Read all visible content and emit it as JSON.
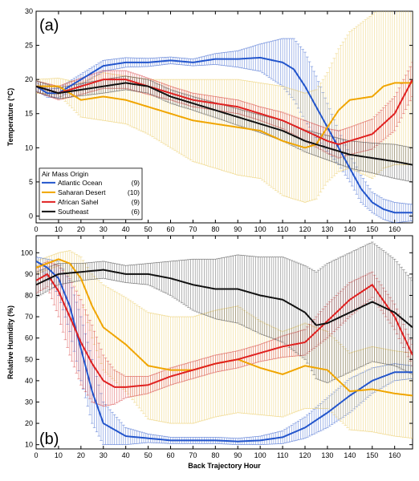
{
  "chart_data": [
    {
      "type": "line",
      "panel_label": "(a)",
      "xlabel": "",
      "ylabel": "Temperature (°C)",
      "xlim": [
        0,
        168
      ],
      "ylim": [
        -1,
        30
      ],
      "xticks": [
        0,
        10,
        20,
        30,
        40,
        50,
        60,
        70,
        80,
        90,
        100,
        110,
        120,
        130,
        140,
        150,
        160
      ],
      "yticks": [
        0,
        5,
        10,
        15,
        20,
        25,
        30
      ],
      "grid": false,
      "legend": {
        "title": "Air Mass Origin",
        "placement": "lower-left",
        "entries": [
          {
            "name": "Atlantic Ocean",
            "count": "(9)"
          },
          {
            "name": "Saharan Desert",
            "count": "(10)"
          },
          {
            "name": "African Sahel",
            "count": "(9)"
          },
          {
            "name": "Southeast",
            "count": "(6)"
          }
        ]
      },
      "series": [
        {
          "name": "Atlantic Ocean",
          "color": "#2255cc",
          "band_color": "#1f4fc8",
          "x": [
            0,
            5,
            10,
            20,
            30,
            40,
            50,
            60,
            70,
            80,
            90,
            100,
            110,
            115,
            120,
            125,
            130,
            135,
            140,
            145,
            150,
            155,
            160,
            168
          ],
          "y": [
            19,
            18,
            18,
            20,
            22,
            22.5,
            22.5,
            22.8,
            22.5,
            23,
            23,
            23.2,
            22.5,
            21.5,
            19,
            16,
            13,
            10,
            7,
            4,
            2,
            1,
            0.5,
            0.5
          ],
          "err": [
            0.6,
            0.6,
            0.7,
            0.8,
            0.8,
            0.7,
            0.6,
            0.5,
            0.5,
            0.8,
            1.2,
            2.0,
            3.5,
            4.5,
            5.0,
            4.5,
            3.5,
            2.5,
            2.0,
            2.0,
            1.5,
            1.5,
            1.5,
            1.2
          ]
        },
        {
          "name": "Saharan Desert",
          "color": "#f0a500",
          "band_color": "#e8c24a",
          "x": [
            0,
            10,
            20,
            30,
            40,
            50,
            60,
            70,
            80,
            90,
            100,
            110,
            120,
            125,
            130,
            135,
            140,
            150,
            155,
            160,
            168
          ],
          "y": [
            19,
            19,
            17,
            17.5,
            17,
            16,
            15,
            14,
            13.5,
            13,
            12.5,
            11,
            10,
            10.5,
            13,
            15.5,
            17,
            17.5,
            19,
            19.5,
            19.5
          ],
          "err": [
            1.0,
            1.2,
            2.5,
            3.5,
            3.5,
            4.0,
            5.0,
            6.0,
            6.5,
            7.0,
            7.0,
            8.0,
            8.0,
            8.0,
            8.0,
            9.0,
            10.0,
            12.0,
            12.0,
            12.0,
            12.0
          ]
        },
        {
          "name": "African Sahel",
          "color": "#e02020",
          "band_color": "#d22020",
          "x": [
            0,
            10,
            20,
            30,
            40,
            50,
            60,
            70,
            80,
            90,
            100,
            110,
            120,
            130,
            135,
            140,
            150,
            160,
            168
          ],
          "y": [
            19,
            18,
            19,
            20,
            20,
            19,
            18,
            17,
            16.5,
            16,
            15,
            14,
            12.5,
            11,
            10.5,
            11,
            12,
            15,
            20
          ],
          "err": [
            0.8,
            1.0,
            1.2,
            1.3,
            1.3,
            1.2,
            1.0,
            1.0,
            1.0,
            1.0,
            1.0,
            1.2,
            1.5,
            1.8,
            2.0,
            2.0,
            2.2,
            2.5,
            2.5
          ]
        },
        {
          "name": "Southeast",
          "color": "#111111",
          "band_color": "#333333",
          "x": [
            0,
            10,
            20,
            30,
            40,
            50,
            60,
            70,
            80,
            90,
            100,
            110,
            120,
            130,
            140,
            150,
            160,
            168
          ],
          "y": [
            19,
            18,
            18.5,
            19,
            19.5,
            19,
            17.5,
            16.5,
            15.5,
            14.5,
            13.5,
            12.5,
            11,
            10,
            9,
            8.5,
            8,
            7.5
          ],
          "err": [
            0.8,
            0.8,
            0.9,
            1.0,
            1.0,
            1.0,
            1.0,
            1.0,
            1.1,
            1.2,
            1.3,
            1.5,
            1.6,
            1.8,
            2.0,
            2.2,
            2.5,
            2.5
          ]
        }
      ]
    },
    {
      "type": "line",
      "panel_label": "(b)",
      "xlabel": "Back Trajectory Hour",
      "ylabel": "Relative Humidity (%)",
      "xlim": [
        0,
        168
      ],
      "ylim": [
        8,
        108
      ],
      "xticks": [
        0,
        10,
        20,
        30,
        40,
        50,
        60,
        70,
        80,
        90,
        100,
        110,
        120,
        130,
        140,
        150,
        160
      ],
      "yticks": [
        10,
        20,
        30,
        40,
        50,
        60,
        70,
        80,
        90,
        100
      ],
      "grid": false,
      "series": [
        {
          "name": "Atlantic Ocean",
          "color": "#2255cc",
          "band_color": "#1f4fc8",
          "x": [
            0,
            5,
            10,
            15,
            20,
            25,
            30,
            40,
            50,
            60,
            70,
            80,
            90,
            100,
            110,
            120,
            130,
            140,
            150,
            160,
            168
          ],
          "y": [
            96,
            93,
            88,
            75,
            55,
            35,
            20,
            14,
            13,
            12,
            12,
            12,
            11.5,
            12,
            13.5,
            18,
            25,
            33,
            40,
            44,
            44
          ],
          "err": [
            2,
            4,
            8,
            12,
            15,
            15,
            10,
            4,
            2,
            1.5,
            1.5,
            1.5,
            1.5,
            2,
            3,
            5,
            7,
            8,
            6,
            4,
            3
          ]
        },
        {
          "name": "Saharan Desert",
          "color": "#f0a500",
          "band_color": "#e8c24a",
          "x": [
            0,
            5,
            10,
            15,
            20,
            25,
            30,
            40,
            50,
            60,
            70,
            80,
            90,
            100,
            110,
            120,
            130,
            140,
            150,
            160,
            168
          ],
          "y": [
            93,
            95,
            97,
            95,
            88,
            75,
            65,
            57,
            47,
            45,
            45,
            48,
            50,
            46,
            43,
            47,
            45,
            35,
            36,
            34,
            33
          ],
          "err": [
            3,
            3,
            3,
            6,
            10,
            15,
            20,
            22,
            25,
            25,
            25,
            25,
            25,
            22,
            20,
            20,
            18,
            18,
            20,
            20,
            20
          ]
        },
        {
          "name": "African Sahel",
          "color": "#e02020",
          "band_color": "#d22020",
          "x": [
            0,
            5,
            10,
            15,
            20,
            25,
            30,
            35,
            40,
            50,
            60,
            70,
            80,
            90,
            100,
            110,
            120,
            130,
            140,
            150,
            160,
            168
          ],
          "y": [
            87,
            90,
            82,
            70,
            58,
            48,
            40,
            37,
            37,
            38,
            42,
            45,
            48,
            50,
            53,
            56,
            58,
            68,
            78,
            85,
            70,
            52
          ],
          "err": [
            6,
            6,
            12,
            18,
            20,
            18,
            12,
            8,
            5,
            4,
            4,
            4,
            4,
            4,
            4,
            5,
            6,
            8,
            8,
            6,
            6,
            5
          ]
        },
        {
          "name": "Southeast",
          "color": "#111111",
          "band_color": "#333333",
          "x": [
            0,
            10,
            20,
            30,
            40,
            50,
            60,
            70,
            80,
            90,
            100,
            110,
            120,
            125,
            130,
            140,
            150,
            160,
            168
          ],
          "y": [
            85,
            90,
            91,
            92,
            90,
            90,
            88,
            85,
            83,
            83,
            80,
            78,
            72,
            66,
            67,
            72,
            77,
            72,
            65
          ],
          "err": [
            6,
            5,
            4,
            4,
            4,
            5,
            8,
            12,
            14,
            16,
            18,
            20,
            22,
            25,
            28,
            28,
            28,
            25,
            22
          ]
        }
      ]
    }
  ]
}
